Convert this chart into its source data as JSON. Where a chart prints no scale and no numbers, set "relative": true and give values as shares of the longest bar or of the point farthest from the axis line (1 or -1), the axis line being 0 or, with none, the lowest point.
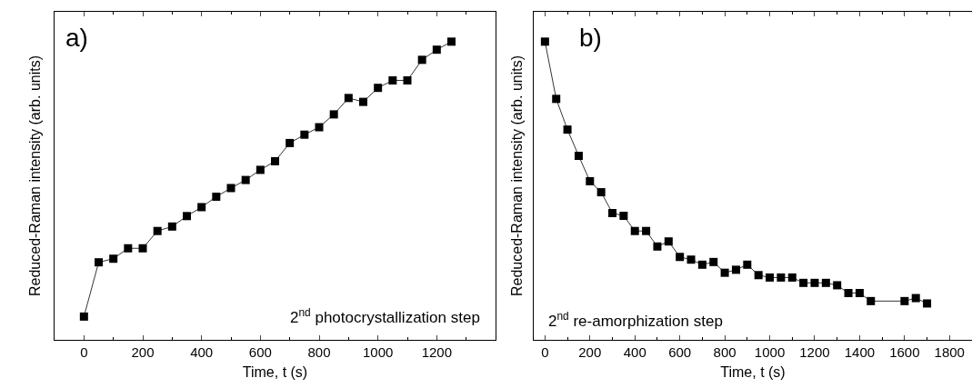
{
  "chart_data": [
    {
      "type": "line",
      "relative": true,
      "xlabel": "Time, t (s)",
      "ylabel": "Reduced-Raman intensity (arb. units)",
      "annotations": [
        "a)",
        "2$^{nd}$ photocrystallization step"
      ],
      "x": [
        0,
        50,
        100,
        150,
        200,
        250,
        300,
        350,
        400,
        450,
        500,
        550,
        600,
        650,
        700,
        750,
        800,
        850,
        900,
        950,
        1000,
        1050,
        1100,
        1150,
        1200,
        1250
      ],
      "marker": "square",
      "line_style": "solid",
      "xlim": [
        -100,
        1400
      ],
      "xticks": [
        0,
        200,
        400,
        600,
        800,
        1000,
        1200
      ],
      "series": [
        {
          "color": "#000000",
          "values": [
            0.078,
            0.26,
            0.272,
            0.307,
            0.307,
            0.365,
            0.38,
            0.415,
            0.445,
            0.48,
            0.509,
            0.536,
            0.57,
            0.599,
            0.66,
            0.688,
            0.713,
            0.756,
            0.811,
            0.798,
            0.845,
            0.87,
            0.87,
            0.939,
            0.973,
            1
          ]
        }
      ]
    },
    {
      "type": "line",
      "relative": true,
      "xlabel": "Time, t (s)",
      "ylabel": "Reduced-Raman intensity (arb. units)",
      "annotations": [
        "b)",
        "2$^{nd}$ re-amorphization step"
      ],
      "x": [
        0,
        50,
        100,
        150,
        200,
        250,
        300,
        350,
        400,
        450,
        500,
        550,
        600,
        650,
        700,
        750,
        800,
        850,
        900,
        950,
        1000,
        1050,
        1100,
        1150,
        1200,
        1250,
        1300,
        1350,
        1400,
        1450,
        1600,
        1650,
        1700
      ],
      "xlim": [
        -50,
        1900
      ],
      "xticks": [
        0,
        200,
        400,
        600,
        800,
        1000,
        1200,
        1400,
        1600,
        1800
      ],
      "series": [
        {
          "color": "#000000",
          "values": [
            1,
            0.808,
            0.705,
            0.617,
            0.532,
            0.495,
            0.425,
            0.416,
            0.365,
            0.365,
            0.313,
            0.33,
            0.278,
            0.269,
            0.252,
            0.261,
            0.225,
            0.235,
            0.252,
            0.217,
            0.209,
            0.209,
            0.209,
            0.191,
            0.191,
            0.191,
            0.183,
            0.157,
            0.157,
            0.13,
            0.13,
            0.14,
            0.122
          ]
        }
      ],
      "marker": "square",
      "line_style": "solid"
    }
  ]
}
